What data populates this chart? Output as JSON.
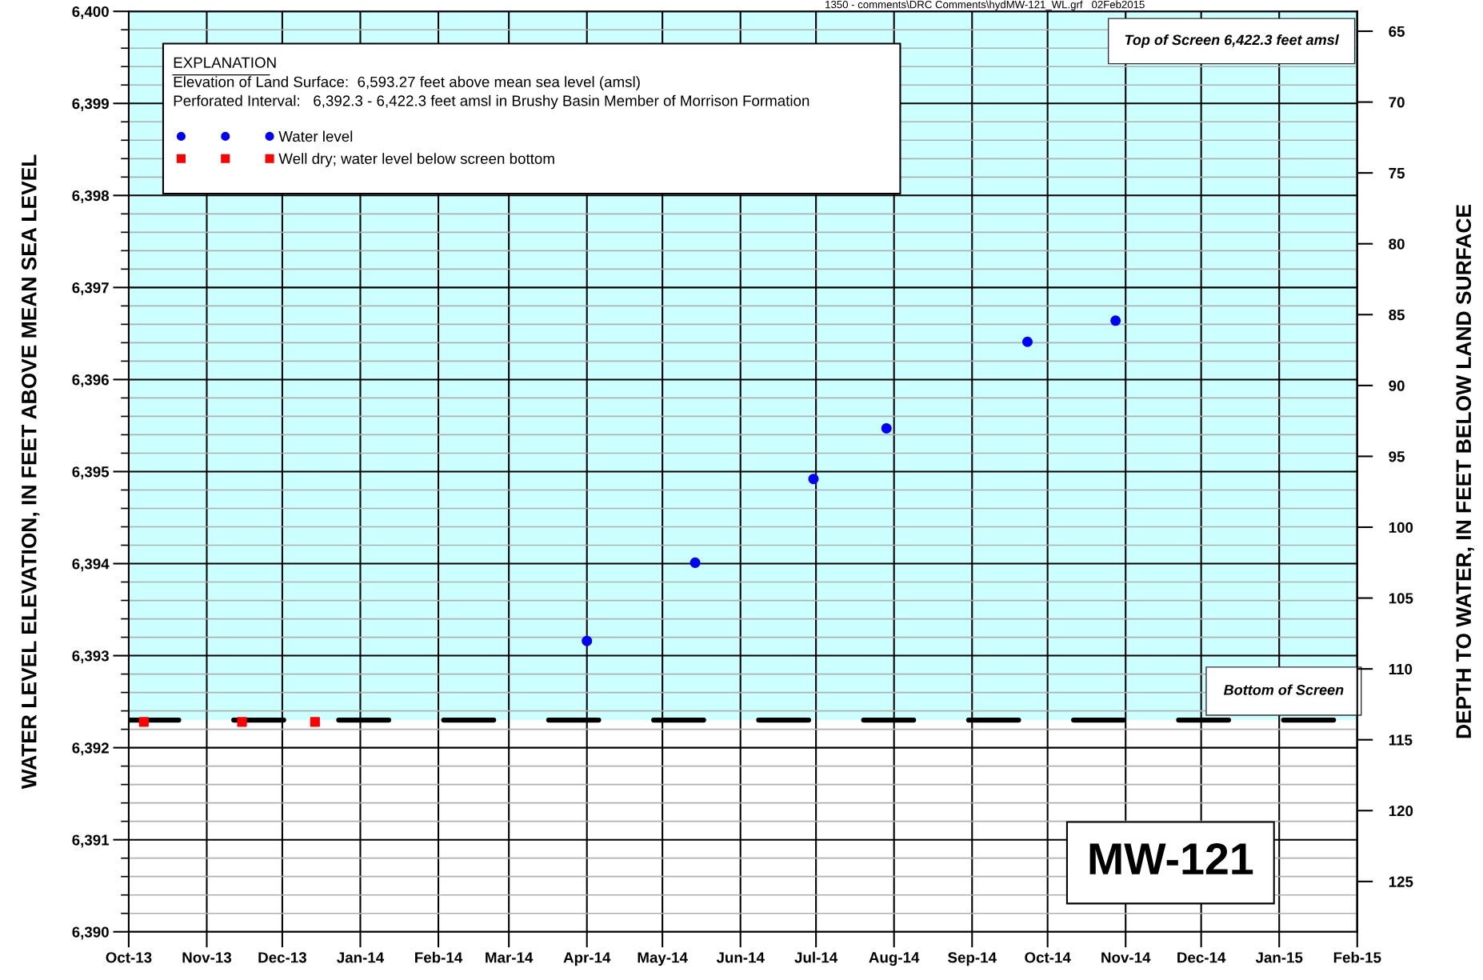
{
  "chart_data": {
    "type": "scatter",
    "title": "MW-121",
    "xlabel": null,
    "ylabel": "WATER LEVEL ELEVATION, IN FEET ABOVE MEAN SEA LEVEL",
    "y2label": "DEPTH TO WATER, IN FEET BELOW LAND SURFACE",
    "legend_title": "EXPLANATION",
    "annotations": [
      "Elevation of Land Surface:  6,593.27 feet above mean sea level (amsl)",
      "Perforated Interval:   6,392.3 - 6,422.3 feet amsl in Brushy Basin Member of Morrison Formation",
      "Top of Screen 6,422.3 feet amsl",
      "1350 - comments\\DRC Comments\\hydMW-121_WL.grf   02Feb2015"
    ],
    "series": [
      {
        "name": "Water level",
        "color": "#0000ff",
        "marker": "circle",
        "x": [
          "2014-04-01",
          "2014-05-14",
          "2014-06-30",
          "2014-07-29",
          "2014-09-23",
          "2014-10-28"
        ],
        "values": [
          6393.16,
          6394.01,
          6394.92,
          6395.47,
          6396.41,
          6396.64
        ]
      },
      {
        "name": "Well dry; water level below screen bottom",
        "color": "#ff0000",
        "marker": "square",
        "x": [
          "2013-10-07",
          "2013-11-15",
          "2013-12-14"
        ],
        "values": [
          6392.28,
          6392.28,
          6392.28
        ]
      }
    ],
    "xlim": [
      "2013-10-01",
      "2015-02-01"
    ],
    "xticks": [
      {
        "value": "2013-10-01",
        "label": "Oct-13"
      },
      {
        "value": "2013-11-01",
        "label": "Nov-13"
      },
      {
        "value": "2013-12-01",
        "label": "Dec-13"
      },
      {
        "value": "2014-01-01",
        "label": "Jan-14"
      },
      {
        "value": "2014-02-01",
        "label": "Feb-14"
      },
      {
        "value": "2014-03-01",
        "label": "Mar-14"
      },
      {
        "value": "2014-04-01",
        "label": "Apr-14"
      },
      {
        "value": "2014-05-01",
        "label": "May-14"
      },
      {
        "value": "2014-06-01",
        "label": "Jun-14"
      },
      {
        "value": "2014-07-01",
        "label": "Jul-14"
      },
      {
        "value": "2014-08-01",
        "label": "Aug-14"
      },
      {
        "value": "2014-09-01",
        "label": "Sep-14"
      },
      {
        "value": "2014-10-01",
        "label": "Oct-14"
      },
      {
        "value": "2014-11-01",
        "label": "Nov-14"
      },
      {
        "value": "2014-12-01",
        "label": "Dec-14"
      },
      {
        "value": "2015-01-01",
        "label": "Jan-15"
      },
      {
        "value": "2015-02-01",
        "label": "Feb-15"
      }
    ],
    "ylim": [
      6390,
      6400
    ],
    "yticks": [
      {
        "value": 6390,
        "label": "6,390"
      },
      {
        "value": 6391,
        "label": "6,391"
      },
      {
        "value": 6392,
        "label": "6,392"
      },
      {
        "value": 6393,
        "label": "6,393"
      },
      {
        "value": 6394,
        "label": "6,394"
      },
      {
        "value": 6395,
        "label": "6,395"
      },
      {
        "value": 6396,
        "label": "6,396"
      },
      {
        "value": 6397,
        "label": "6,397"
      },
      {
        "value": 6398,
        "label": "6,398"
      },
      {
        "value": 6399,
        "label": "6,399"
      },
      {
        "value": 6400,
        "label": "6,400"
      }
    ],
    "y2lim": [
      128.55,
      63.6
    ],
    "y2ticks": [
      65,
      70,
      75,
      80,
      85,
      90,
      95,
      100,
      105,
      110,
      115,
      120,
      125
    ],
    "ref_lines": [
      {
        "axis": "y",
        "value": 6392.3,
        "label": "Bottom of Screen",
        "color": "#000000",
        "line_style": "dashed"
      }
    ],
    "bands": [
      {
        "axis": "y",
        "from": 6392.3,
        "to": 6400,
        "color": "#ccffff"
      }
    ],
    "grid": true,
    "legend": "top left"
  }
}
